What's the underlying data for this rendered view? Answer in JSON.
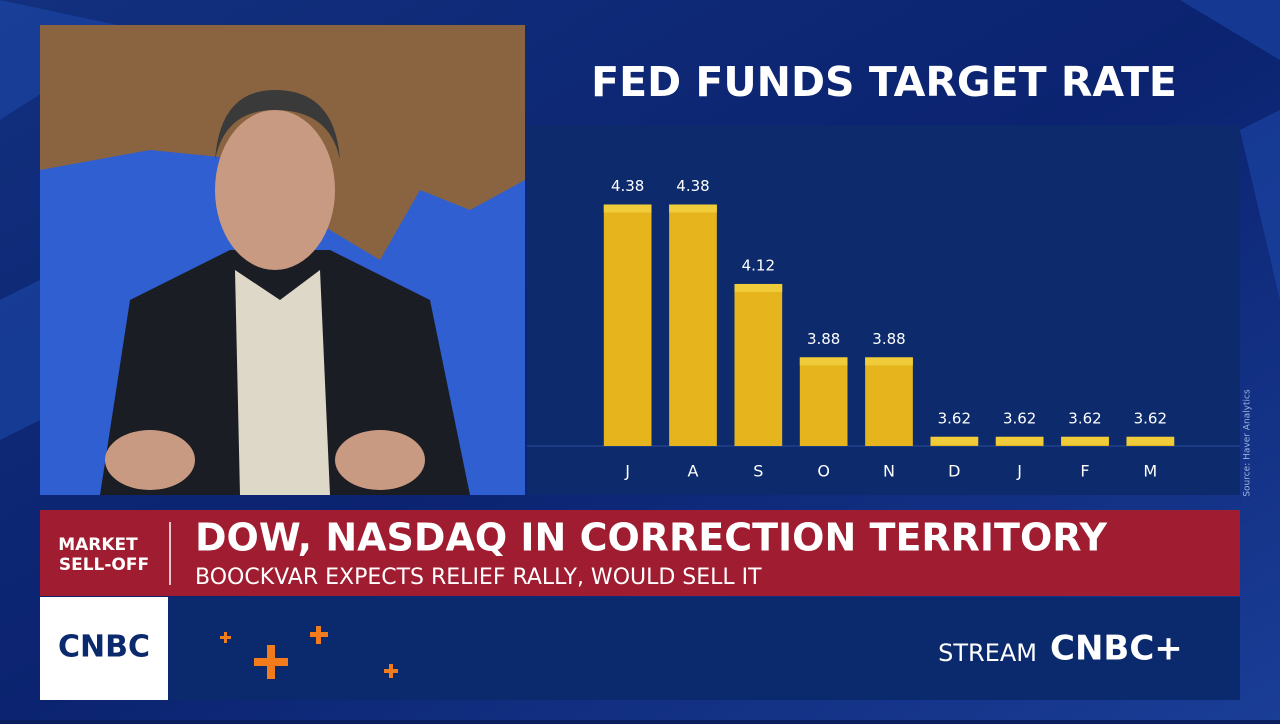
{
  "chart_data": {
    "type": "bar",
    "title": "FED FUNDS TARGET RATE",
    "categories": [
      "J",
      "A",
      "S",
      "O",
      "N",
      "D",
      "J",
      "F",
      "M"
    ],
    "values": [
      4.38,
      4.38,
      4.12,
      3.88,
      3.88,
      3.62,
      3.62,
      3.62,
      3.62
    ],
    "color": "#e6b51e",
    "ylim": [
      3.59,
      4.64
    ],
    "source": "Source: Haver Analytics"
  },
  "lower_third": {
    "tag": [
      "MARKET",
      "SELL-OFF"
    ],
    "headline": "DOW, NASDAQ IN CORRECTION TERRITORY",
    "subheadline": "BOOCKVAR EXPECTS RELIEF RALLY, WOULD SELL IT"
  },
  "footer": {
    "logo": "CNBC",
    "stream": "STREAM",
    "stream_logo": "CNBC+"
  }
}
